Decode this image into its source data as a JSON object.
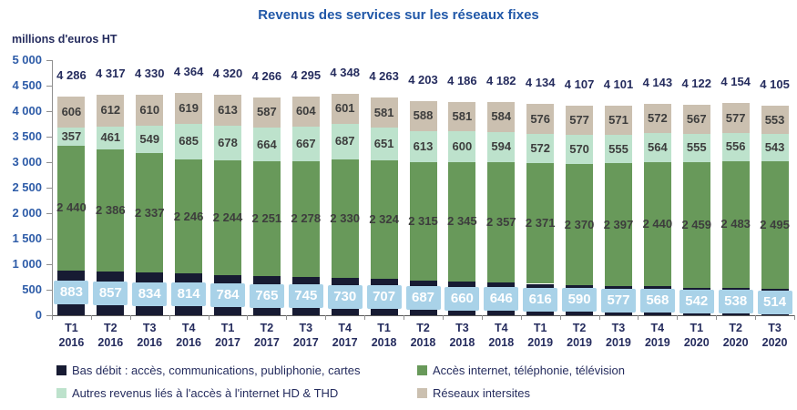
{
  "chart_data": {
    "type": "bar",
    "stacked": true,
    "title": "Revenus des services sur les réseaux fixes",
    "unit_label": "millions d'euros HT",
    "ylim": [
      0,
      5000
    ],
    "y_step": 500,
    "grid": false,
    "legend_position": "bottom",
    "categories": [
      "T1 2016",
      "T2 2016",
      "T3 2016",
      "T4 2016",
      "T1 2017",
      "T2 2017",
      "T3 2017",
      "T4 2017",
      "T1 2018",
      "T2 2018",
      "T3 2018",
      "T4 2018",
      "T1 2019",
      "T2 2019",
      "T3 2019",
      "T4 2019",
      "T1 2020",
      "T2 2020",
      "T3 2020"
    ],
    "series": [
      {
        "key": "bas-debit",
        "name": "Bas débit : accès, communications, publiphonie, cartes",
        "color": "#171B33",
        "label_style": "badge",
        "values": [
          883,
          857,
          834,
          814,
          784,
          765,
          745,
          730,
          707,
          687,
          660,
          646,
          616,
          590,
          577,
          568,
          542,
          538,
          514
        ]
      },
      {
        "key": "acces-internet",
        "name": "Accès internet, téléphonie, télévision",
        "color": "#68995A",
        "label_style": "plain",
        "values": [
          2440,
          2386,
          2337,
          2246,
          2244,
          2251,
          2278,
          2330,
          2324,
          2315,
          2345,
          2357,
          2371,
          2370,
          2397,
          2440,
          2459,
          2483,
          2495
        ]
      },
      {
        "key": "autres-revenus-hd-thd",
        "name": "Autres revenus liés à l'accès à l'internet HD & THD",
        "color": "#BDE2CC",
        "label_style": "plain",
        "values": [
          357,
          461,
          549,
          685,
          678,
          664,
          667,
          687,
          651,
          613,
          600,
          594,
          572,
          570,
          555,
          564,
          555,
          556,
          543
        ]
      },
      {
        "key": "reseaux-intersites",
        "name": "Réseaux intersites",
        "color": "#CBC0B0",
        "label_style": "plain",
        "values": [
          606,
          612,
          610,
          619,
          613,
          587,
          604,
          601,
          581,
          588,
          581,
          584,
          576,
          577,
          571,
          572,
          567,
          577,
          553
        ]
      }
    ],
    "totals": [
      4286,
      4317,
      4330,
      4364,
      4320,
      4266,
      4295,
      4348,
      4263,
      4203,
      4186,
      4182,
      4134,
      4107,
      4101,
      4143,
      4122,
      4154,
      4105
    ]
  },
  "colors": {
    "title_text": "#2158A8",
    "axis_text": "#2E5CA8",
    "dark_text": "#252C5E",
    "segment_label_text": "#3D3D3D",
    "value_badge_bg": "#A9D2E8",
    "value_badge_text": "#FFFFFF",
    "axis_line": "#8F8F8F"
  }
}
